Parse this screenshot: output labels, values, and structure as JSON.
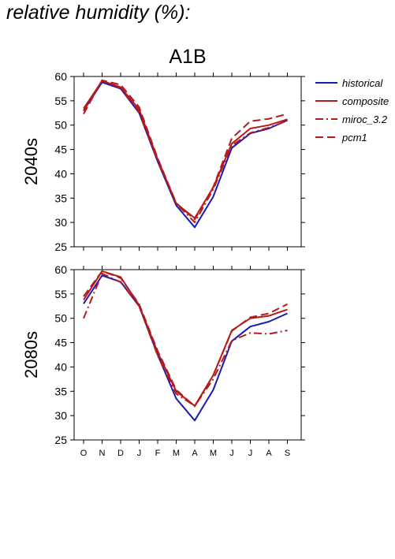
{
  "page": {
    "title": "relative humidity (%):"
  },
  "chart_data": {
    "type": "line",
    "title": "A1B",
    "categories": [
      "O",
      "N",
      "D",
      "J",
      "F",
      "M",
      "A",
      "M",
      "J",
      "J",
      "A",
      "S"
    ],
    "ylim": [
      25,
      60
    ],
    "yticks": [
      25,
      30,
      35,
      40,
      45,
      50,
      55,
      60
    ],
    "legend": {
      "placement": "right"
    },
    "series_styles": [
      {
        "name": "historical",
        "color": "#1a1ab4",
        "dash": "solid"
      },
      {
        "name": "composite",
        "color": "#b41a1a",
        "dash": "solid"
      },
      {
        "name": "miroc_3.2",
        "color": "#b41a1a",
        "dash": "dashdot"
      },
      {
        "name": "pcm1",
        "color": "#b41a1a",
        "dash": "dashed"
      }
    ],
    "panels": [
      {
        "label": "2040s",
        "series": [
          {
            "name": "historical",
            "values": [
              53.0,
              58.8,
              57.5,
              52.5,
              42.5,
              33.5,
              29.0,
              35.3,
              45.3,
              48.3,
              49.3,
              51.0
            ]
          },
          {
            "name": "composite",
            "values": [
              53.4,
              59.1,
              57.8,
              53.2,
              43.0,
              33.9,
              30.9,
              37.2,
              46.2,
              49.3,
              50.0,
              51.2
            ]
          },
          {
            "name": "miroc_3.2",
            "values": [
              52.9,
              59.2,
              57.6,
              52.7,
              42.6,
              33.9,
              30.0,
              36.8,
              45.8,
              48.4,
              49.5,
              50.9
            ]
          },
          {
            "name": "pcm1",
            "values": [
              52.3,
              59.2,
              58.3,
              53.7,
              43.2,
              34.0,
              30.6,
              37.3,
              47.3,
              50.8,
              51.3,
              52.3
            ]
          }
        ]
      },
      {
        "label": "2080s",
        "series": [
          {
            "name": "historical",
            "values": [
              53.0,
              58.8,
              57.5,
              52.5,
              42.5,
              33.5,
              29.0,
              35.3,
              45.3,
              48.3,
              49.3,
              51.0
            ]
          },
          {
            "name": "composite",
            "values": [
              53.8,
              59.7,
              58.5,
              52.7,
              43.0,
              35.0,
              32.0,
              38.3,
              47.5,
              50.0,
              50.5,
              51.8
            ]
          },
          {
            "name": "miroc_3.2",
            "values": [
              50.0,
              59.2,
              57.4,
              52.5,
              42.3,
              34.5,
              32.0,
              37.5,
              45.4,
              47.0,
              46.8,
              47.5
            ]
          },
          {
            "name": "pcm1",
            "values": [
              54.5,
              59.7,
              58.3,
              52.9,
              43.3,
              35.3,
              31.9,
              38.3,
              47.4,
              50.2,
              51.0,
              52.9
            ]
          }
        ]
      }
    ]
  }
}
